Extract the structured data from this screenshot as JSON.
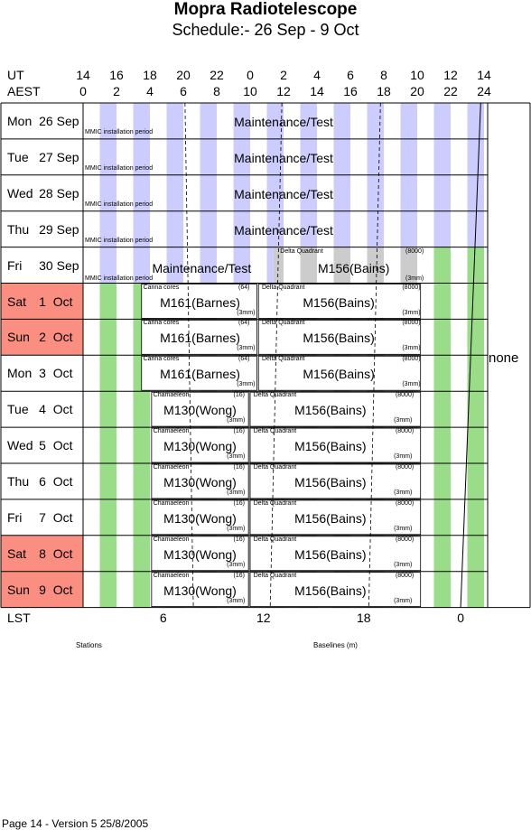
{
  "title": "Mopra Radiotelescope",
  "subtitle": "Schedule:- 26 Sep - 9  Oct",
  "ut_label": "UT",
  "aest_label": "AEST",
  "ut_ticks": [
    "14",
    "16",
    "18",
    "20",
    "22",
    "0",
    "2",
    "4",
    "6",
    "8",
    "10",
    "12",
    "14"
  ],
  "aest_ticks": [
    "0",
    "2",
    "4",
    "6",
    "8",
    "10",
    "12",
    "14",
    "16",
    "18",
    "20",
    "22",
    "24"
  ],
  "days": [
    {
      "name": "Mon",
      "date": "26 Sep",
      "weekend": false
    },
    {
      "name": "Tue",
      "date": "27 Sep",
      "weekend": false
    },
    {
      "name": "Wed",
      "date": "28 Sep",
      "weekend": false
    },
    {
      "name": "Thu",
      "date": "29 Sep",
      "weekend": false
    },
    {
      "name": "Fri",
      "date": "30 Sep",
      "weekend": false
    },
    {
      "name": "Sat",
      "date": "1  Oct",
      "weekend": true
    },
    {
      "name": "Sun",
      "date": "2  Oct",
      "weekend": true
    },
    {
      "name": "Mon",
      "date": "3  Oct",
      "weekend": false
    },
    {
      "name": "Tue",
      "date": "4  Oct",
      "weekend": false
    },
    {
      "name": "Wed",
      "date": "5  Oct",
      "weekend": false
    },
    {
      "name": "Thu",
      "date": "6  Oct",
      "weekend": false
    },
    {
      "name": "Fri",
      "date": "7  Oct",
      "weekend": false
    },
    {
      "name": "Sat",
      "date": "8  Oct",
      "weekend": true
    },
    {
      "name": "Sun",
      "date": "9  Oct",
      "weekend": true
    }
  ],
  "labels": {
    "maintenance": "Maintenance/Test",
    "mmic": "MMIC installation period",
    "delta": "Delta Quadrant",
    "delta_num": "(8000)",
    "m156": "M156(Bains)",
    "band": "(3mm)",
    "canna": "Canna cores",
    "canna_num": "(64)",
    "m161": "M161(Barnes)",
    "chamaeleon": "Chamaeleon",
    "cham_num": "(16)",
    "m130": "M130(Wong)",
    "none": "none"
  },
  "lst_label": "LST",
  "lst_ticks": [
    "6",
    "12",
    "18",
    "0"
  ],
  "stations_label": "Stations",
  "baselines_label": "Baselines (m)",
  "footer": "Page 14 - Version 5  25/8/2005",
  "colors": {
    "weekend": "#fa8e80",
    "maintenance_stripe": "#ccccff",
    "grey_stripe": "#cccccc",
    "green_stripe": "#99dd88"
  }
}
